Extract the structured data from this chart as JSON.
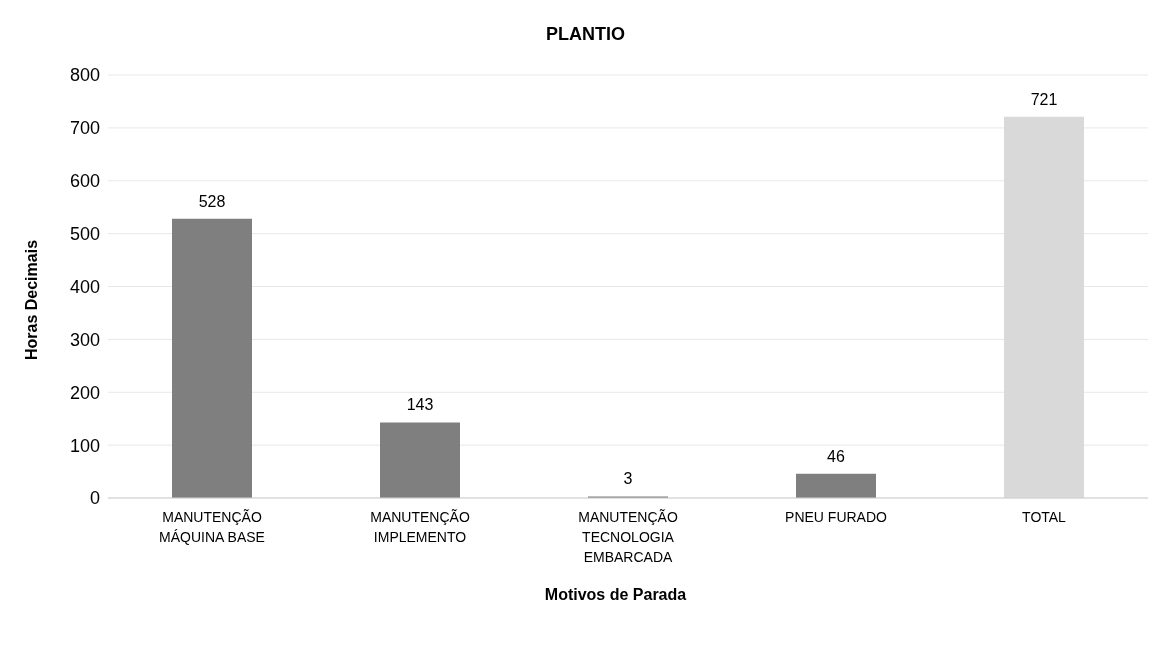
{
  "chart_data": {
    "type": "bar",
    "title": "PLANTIO",
    "xlabel": "Motivos de Parada",
    "ylabel": "Horas Decimais",
    "categories": [
      "MANUTENÇÃO MÁQUINA BASE",
      "MANUTENÇÃO IMPLEMENTO",
      "MANUTENÇÃO TECNOLOGIA EMBARCADA",
      "PNEU FURADO",
      "TOTAL"
    ],
    "values": [
      528,
      143,
      3,
      46,
      721
    ],
    "colors": [
      "#7f7f7f",
      "#7f7f7f",
      "#7f7f7f",
      "#7f7f7f",
      "#d9d9d9"
    ],
    "ylim": [
      0,
      800
    ],
    "yticks": [
      0,
      100,
      200,
      300,
      400,
      500,
      600,
      700,
      800
    ],
    "grid": "y",
    "data_labels": true
  }
}
